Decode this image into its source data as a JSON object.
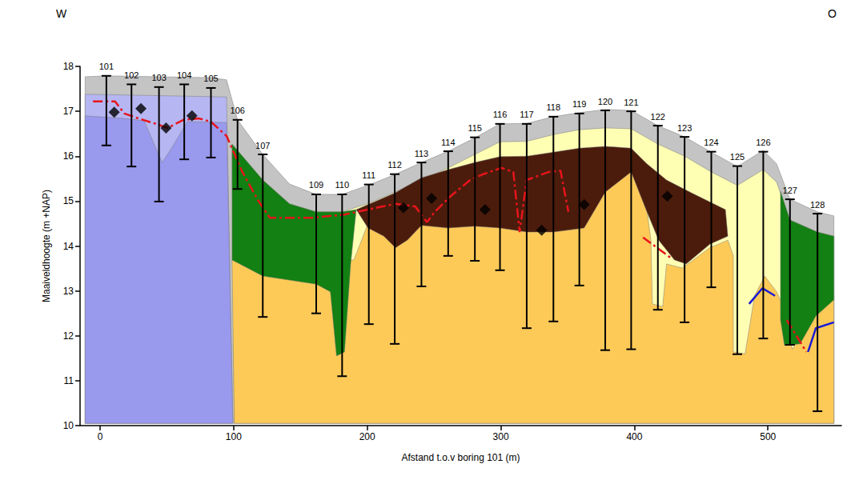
{
  "chart_data": {
    "type": "cross_section",
    "x_label": "Afstand t.o.v boring 101 (m)",
    "y_label": "Maaiveldhoogte (m +NAP)",
    "annotations": [
      "W",
      "O"
    ],
    "xlim": [
      -15,
      555
    ],
    "xticks": [
      0,
      100,
      200,
      300,
      400,
      500
    ],
    "ylim": [
      10,
      18
    ],
    "yticks": [
      10,
      11,
      12,
      13,
      14,
      15,
      16,
      17,
      18
    ],
    "grid": false,
    "layers": [
      {
        "color": "#c4c4c4",
        "points": [
          [
            -11.2,
            17.77
          ],
          [
            4.7,
            17.79
          ],
          [
            82.9,
            17.75
          ],
          [
            94.7,
            17.7
          ],
          [
            102.9,
            16.81
          ],
          [
            121.8,
            16.04
          ],
          [
            141.8,
            15.38
          ],
          [
            161.8,
            15.15
          ],
          [
            181.2,
            15.15
          ],
          [
            201.2,
            15.36
          ],
          [
            220.6,
            15.59
          ],
          [
            240.6,
            15.86
          ],
          [
            260.6,
            16.11
          ],
          [
            280.6,
            16.41
          ],
          [
            299.4,
            16.72
          ],
          [
            319.4,
            16.73
          ],
          [
            339.4,
            16.88
          ],
          [
            358.8,
            16.97
          ],
          [
            378.2,
            17.04
          ],
          [
            397.6,
            17.02
          ],
          [
            417.6,
            16.68
          ],
          [
            437.6,
            16.43
          ],
          [
            457.6,
            16.09
          ],
          [
            477.1,
            15.77
          ],
          [
            496.5,
            16.13
          ],
          [
            506.5,
            15.83
          ],
          [
            516.5,
            15.04
          ],
          [
            537.1,
            14.76
          ],
          [
            549.4,
            14.67
          ],
          [
            549.4,
            10.05
          ],
          [
            -11.2,
            10.05
          ]
        ]
      },
      {
        "color": "#b6b6f2",
        "points": [
          [
            -11.2,
            17.38
          ],
          [
            94.7,
            17.32
          ],
          [
            99.4,
            10.05
          ],
          [
            -11.2,
            10.05
          ]
        ]
      },
      {
        "color": "#9999ee",
        "points": [
          [
            -11.2,
            16.9
          ],
          [
            18.2,
            16.84
          ],
          [
            32.9,
            16.79
          ],
          [
            41.8,
            16.18
          ],
          [
            46.5,
            15.86
          ],
          [
            53.5,
            16.18
          ],
          [
            65.3,
            16.77
          ],
          [
            94.7,
            16.75
          ],
          [
            99.4,
            10.05
          ],
          [
            -11.2,
            10.05
          ]
        ]
      },
      {
        "color": "#ffffb4",
        "points": [
          [
            98.8,
            16.27
          ],
          [
            121.8,
            15.47
          ],
          [
            141.8,
            14.94
          ],
          [
            161.8,
            14.76
          ],
          [
            181.2,
            14.76
          ],
          [
            201.2,
            14.95
          ],
          [
            220.6,
            15.2
          ],
          [
            240.6,
            15.47
          ],
          [
            260.6,
            15.74
          ],
          [
            280.6,
            16.04
          ],
          [
            299.4,
            16.32
          ],
          [
            319.4,
            16.33
          ],
          [
            339.4,
            16.48
          ],
          [
            358.8,
            16.59
          ],
          [
            378.2,
            16.63
          ],
          [
            397.6,
            16.61
          ],
          [
            417.6,
            16.27
          ],
          [
            437.6,
            16.0
          ],
          [
            457.6,
            15.65
          ],
          [
            477.1,
            15.35
          ],
          [
            496.5,
            15.7
          ],
          [
            506.5,
            15.42
          ],
          [
            516.5,
            14.58
          ],
          [
            537.1,
            14.31
          ],
          [
            549.4,
            14.22
          ],
          [
            549.4,
            10.05
          ],
          [
            100.5,
            10.05
          ]
        ]
      },
      {
        "color": "#fdca58",
        "points": [
          [
            98.8,
            13.69
          ],
          [
            190,
            13.69
          ],
          [
            200.6,
            14.5
          ],
          [
            221.2,
            14.1
          ],
          [
            240.6,
            14.5
          ],
          [
            299.4,
            14.5
          ],
          [
            378.2,
            15.3
          ],
          [
            397.6,
            15.7
          ],
          [
            409.4,
            14.8
          ],
          [
            412.4,
            14.13
          ],
          [
            413.5,
            12.71
          ],
          [
            421.2,
            12.65
          ],
          [
            424.1,
            13.6
          ],
          [
            435.9,
            13.51
          ],
          [
            456.5,
            13.96
          ],
          [
            470,
            14.13
          ],
          [
            474.1,
            13.78
          ],
          [
            474.1,
            11.64
          ],
          [
            482.9,
            11.6
          ],
          [
            490,
            12.89
          ],
          [
            497.6,
            13.33
          ],
          [
            506.5,
            12.98
          ],
          [
            510.6,
            12.71
          ],
          [
            518.2,
            11.7
          ],
          [
            535.9,
            12.5
          ],
          [
            549.4,
            12.9
          ],
          [
            549.4,
            10.05
          ],
          [
            100.5,
            10.05
          ]
        ]
      },
      {
        "color": "#128012",
        "points": [
          [
            98.8,
            16.27
          ],
          [
            121.8,
            15.47
          ],
          [
            141.8,
            14.94
          ],
          [
            161.8,
            14.76
          ],
          [
            181.2,
            14.76
          ],
          [
            191.8,
            14.81
          ],
          [
            187.6,
            13.6
          ],
          [
            183,
            11.64
          ],
          [
            177,
            11.55
          ],
          [
            172.4,
            12.98
          ],
          [
            161.8,
            13.15
          ],
          [
            121.8,
            13.33
          ],
          [
            98.8,
            13.69
          ]
        ]
      },
      {
        "color": "#128012",
        "points": [
          [
            509.4,
            15.22
          ],
          [
            516.5,
            14.58
          ],
          [
            537.1,
            14.31
          ],
          [
            549.4,
            14.22
          ],
          [
            549.4,
            12.8
          ],
          [
            535.9,
            12.44
          ],
          [
            524.1,
            11.82
          ],
          [
            512.4,
            11.78
          ],
          [
            509.4,
            12.35
          ]
        ]
      },
      {
        "color": "#4b1c0c",
        "points": [
          [
            191.8,
            14.81
          ],
          [
            206.5,
            15.0
          ],
          [
            220.6,
            15.18
          ],
          [
            240.6,
            15.52
          ],
          [
            260.6,
            15.7
          ],
          [
            280.6,
            15.86
          ],
          [
            299.4,
            15.99
          ],
          [
            319.4,
            16.0
          ],
          [
            339.4,
            16.09
          ],
          [
            358.8,
            16.18
          ],
          [
            378.2,
            16.22
          ],
          [
            397.6,
            16.18
          ],
          [
            409.4,
            15.83
          ],
          [
            424.1,
            15.47
          ],
          [
            441.8,
            15.2
          ],
          [
            459.4,
            14.94
          ],
          [
            468.2,
            14.81
          ],
          [
            470,
            14.22
          ],
          [
            456.5,
            14.04
          ],
          [
            438.8,
            13.6
          ],
          [
            430,
            13.69
          ],
          [
            418.2,
            14.13
          ],
          [
            409.4,
            14.76
          ],
          [
            397.6,
            15.65
          ],
          [
            378.2,
            15.2
          ],
          [
            362.4,
            14.4
          ],
          [
            339.4,
            14.31
          ],
          [
            319.4,
            14.31
          ],
          [
            299.4,
            14.4
          ],
          [
            280.6,
            14.44
          ],
          [
            260.6,
            14.4
          ],
          [
            240.6,
            14.46
          ],
          [
            230,
            14.13
          ],
          [
            221.2,
            13.96
          ],
          [
            212.4,
            14.22
          ],
          [
            200.6,
            14.4
          ]
        ]
      }
    ],
    "lines": [
      {
        "color": "#e8141c",
        "line_style": "dashdot",
        "points": [
          [
            -5.3,
            17.22
          ],
          [
            11.2,
            17.22
          ],
          [
            18.2,
            16.95
          ],
          [
            28.8,
            16.84
          ],
          [
            41.8,
            16.72
          ],
          [
            50.6,
            16.63
          ],
          [
            62.4,
            16.81
          ],
          [
            74.1,
            16.84
          ],
          [
            82.9,
            16.77
          ],
          [
            94.7,
            16.45
          ],
          [
            106.5,
            15.65
          ],
          [
            118.2,
            15.02
          ],
          [
            127.1,
            14.63
          ],
          [
            159.4,
            14.63
          ],
          [
            182.9,
            14.7
          ],
          [
            206.5,
            14.85
          ],
          [
            221.2,
            14.94
          ],
          [
            235.9,
            14.88
          ],
          [
            244.7,
            14.53
          ],
          [
            250.6,
            14.76
          ],
          [
            262.4,
            15.11
          ],
          [
            277.1,
            15.47
          ],
          [
            285.9,
            15.59
          ],
          [
            300.6,
            15.74
          ],
          [
            309.4,
            15.65
          ],
          [
            314.1,
            14.31
          ],
          [
            319.4,
            15.47
          ],
          [
            335.9,
            15.65
          ],
          [
            344.7,
            15.68
          ],
          [
            350.6,
            14.76
          ]
        ]
      },
      {
        "color": "#e8141c",
        "line_style": "dashdot",
        "points": [
          [
            406.5,
            14.19
          ],
          [
            427.1,
            13.74
          ]
        ]
      },
      {
        "color": "#e8141c",
        "line_style": "dashdot",
        "points": [
          [
            514.1,
            12.35
          ],
          [
            528.8,
            11.64
          ]
        ]
      },
      {
        "color": "#1a1ad6",
        "line_style": "solid",
        "points": [
          [
            485.9,
            12.71
          ],
          [
            495.9,
            13.06
          ],
          [
            505.3,
            12.89
          ]
        ]
      },
      {
        "color": "#1a1ad6",
        "line_style": "solid",
        "points": [
          [
            530,
            11.64
          ],
          [
            535.9,
            12.17
          ],
          [
            549.4,
            12.3
          ]
        ]
      }
    ],
    "markers": {
      "marker": "diamond",
      "color": "#000000",
      "points": [
        [
          10.6,
          16.98
        ],
        [
          30.6,
          17.06
        ],
        [
          49.4,
          16.63
        ],
        [
          68.8,
          16.9
        ],
        [
          227.1,
          14.85
        ],
        [
          248.2,
          15.06
        ],
        [
          288.2,
          14.81
        ],
        [
          330.6,
          14.35
        ],
        [
          362.4,
          14.92
        ],
        [
          424.7,
          15.11
        ]
      ]
    },
    "boreholes": [
      {
        "name": "101",
        "x": 4.7,
        "top": 17.79,
        "bottom": 16.24
      },
      {
        "name": "102",
        "x": 23.5,
        "top": 17.6,
        "bottom": 15.77
      },
      {
        "name": "103",
        "x": 44.1,
        "top": 17.54,
        "bottom": 14.99
      },
      {
        "name": "104",
        "x": 63.0,
        "top": 17.6,
        "bottom": 15.93
      },
      {
        "name": "105",
        "x": 83.0,
        "top": 17.52,
        "bottom": 15.97
      },
      {
        "name": "106",
        "x": 102.9,
        "top": 16.81,
        "bottom": 15.27
      },
      {
        "name": "107",
        "x": 121.8,
        "top": 16.04,
        "bottom": 12.42
      },
      {
        "name": "109",
        "x": 161.8,
        "top": 15.15,
        "bottom": 12.5
      },
      {
        "name": "110",
        "x": 181.2,
        "top": 15.15,
        "bottom": 11.1
      },
      {
        "name": "111",
        "x": 201.2,
        "top": 15.37,
        "bottom": 12.26
      },
      {
        "name": "112",
        "x": 220.6,
        "top": 15.6,
        "bottom": 11.82
      },
      {
        "name": "113",
        "x": 240.6,
        "top": 15.86,
        "bottom": 13.1
      },
      {
        "name": "114",
        "x": 260.6,
        "top": 16.11,
        "bottom": 13.78
      },
      {
        "name": "115",
        "x": 280.6,
        "top": 16.42,
        "bottom": 13.67
      },
      {
        "name": "116",
        "x": 299.4,
        "top": 16.72,
        "bottom": 13.46
      },
      {
        "name": "117",
        "x": 319.4,
        "top": 16.72,
        "bottom": 12.17
      },
      {
        "name": "118",
        "x": 339.4,
        "top": 16.88,
        "bottom": 12.32
      },
      {
        "name": "119",
        "x": 358.8,
        "top": 16.95,
        "bottom": 13.12
      },
      {
        "name": "120",
        "x": 378.2,
        "top": 17.02,
        "bottom": 11.68
      },
      {
        "name": "121",
        "x": 397.6,
        "top": 17.0,
        "bottom": 11.7
      },
      {
        "name": "122",
        "x": 417.6,
        "top": 16.68,
        "bottom": 12.58
      },
      {
        "name": "123",
        "x": 437.6,
        "top": 16.43,
        "bottom": 12.3
      },
      {
        "name": "124",
        "x": 457.6,
        "top": 16.1,
        "bottom": 13.08
      },
      {
        "name": "125",
        "x": 477.1,
        "top": 15.78,
        "bottom": 11.59
      },
      {
        "name": "126",
        "x": 496.5,
        "top": 16.1,
        "bottom": 11.94
      },
      {
        "name": "127",
        "x": 516.5,
        "top": 15.04,
        "bottom": 11.8
      },
      {
        "name": "128",
        "x": 537.1,
        "top": 14.72,
        "bottom": 10.32
      }
    ]
  }
}
